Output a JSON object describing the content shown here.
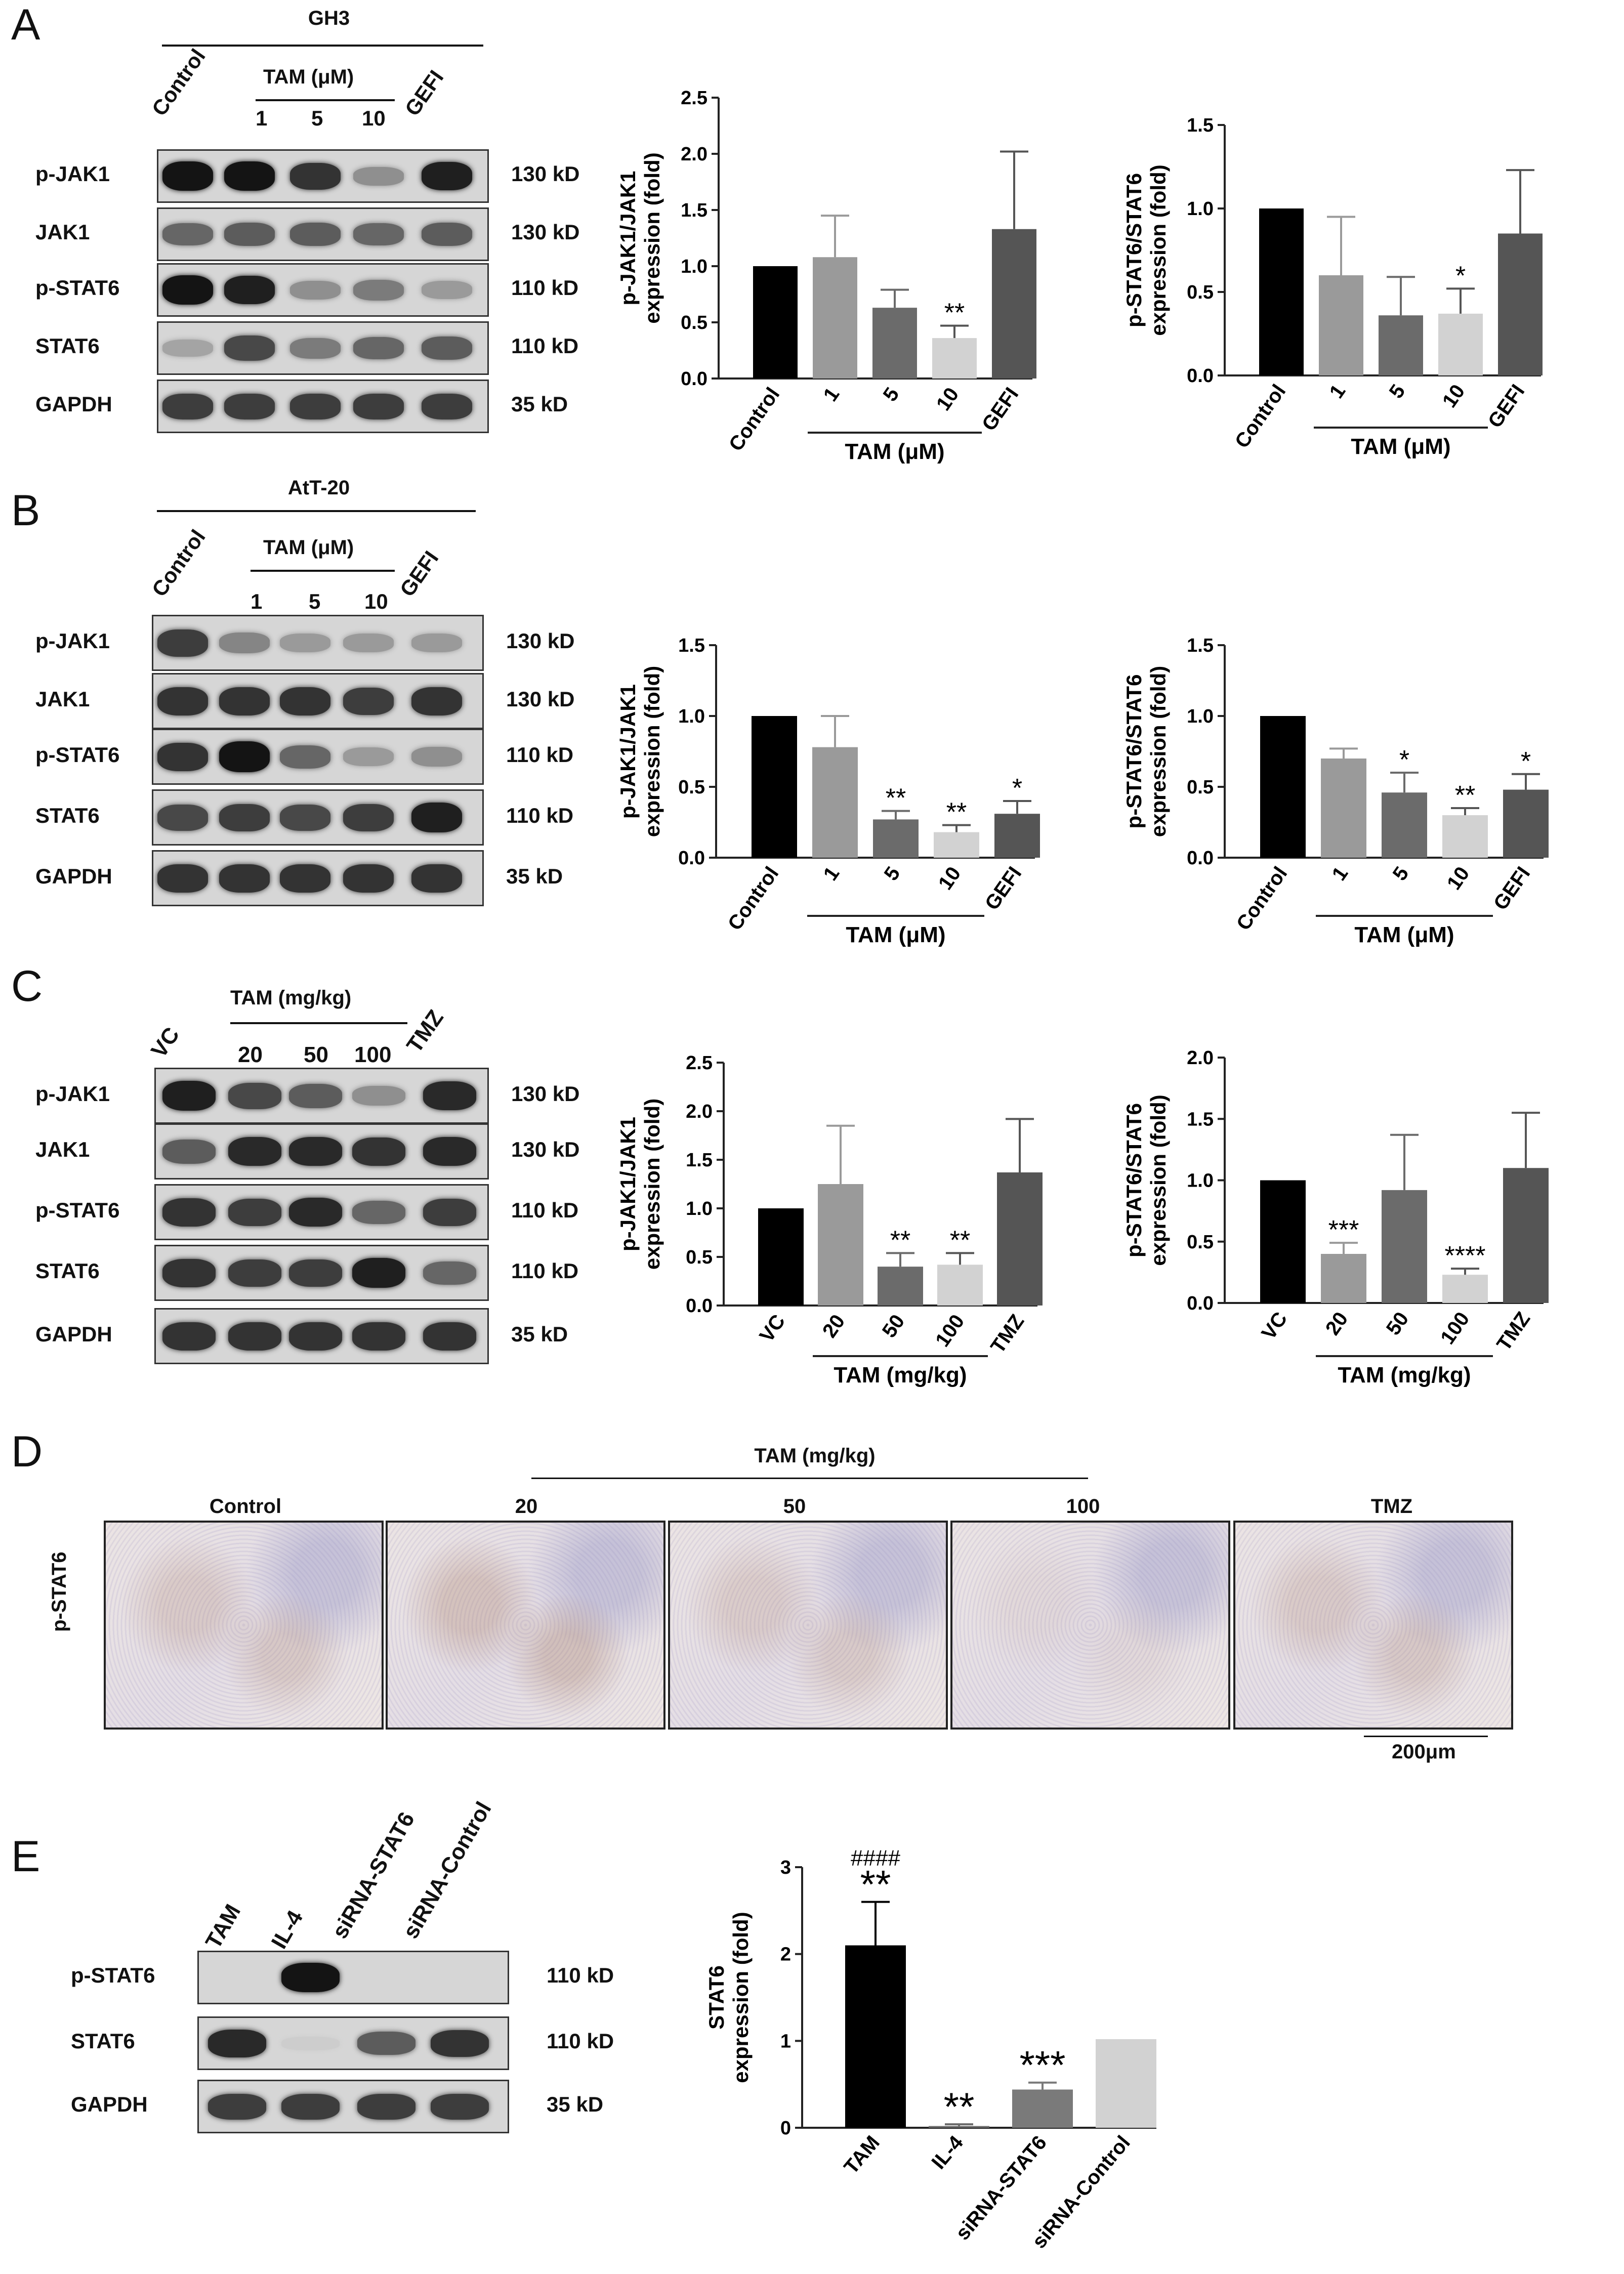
{
  "panels": {
    "A": {
      "letter": "A",
      "cell_line": "GH3",
      "treatment_header": "TAM (μM)",
      "lanes": [
        "Control",
        "1",
        "5",
        "10",
        "GEFI"
      ],
      "rows": [
        {
          "label": "p-JAK1",
          "kd": "130 kD",
          "intensity": [
            0.95,
            0.95,
            0.8,
            0.35,
            0.9
          ]
        },
        {
          "label": "JAK1",
          "kd": "130 kD",
          "intensity": [
            0.55,
            0.6,
            0.6,
            0.55,
            0.6
          ]
        },
        {
          "label": "p-STAT6",
          "kd": "110 kD",
          "intensity": [
            0.95,
            0.9,
            0.35,
            0.45,
            0.3
          ]
        },
        {
          "label": "STAT6",
          "kd": "110 kD",
          "intensity": [
            0.25,
            0.7,
            0.45,
            0.55,
            0.6
          ]
        },
        {
          "label": "GAPDH",
          "kd": "35 kD",
          "intensity": [
            0.75,
            0.75,
            0.75,
            0.75,
            0.75
          ]
        }
      ]
    },
    "B": {
      "letter": "B",
      "cell_line": "AtT-20",
      "treatment_header": "TAM (μM)",
      "lanes": [
        "Control",
        "1",
        "5",
        "10",
        "GEFI"
      ],
      "rows": [
        {
          "label": "p-JAK1",
          "kd": "130 kD",
          "intensity": [
            0.75,
            0.4,
            0.3,
            0.3,
            0.3
          ]
        },
        {
          "label": "JAK1",
          "kd": "130 kD",
          "intensity": [
            0.8,
            0.8,
            0.8,
            0.75,
            0.8
          ]
        },
        {
          "label": "p-STAT6",
          "kd": "110 kD",
          "intensity": [
            0.8,
            0.95,
            0.55,
            0.3,
            0.35
          ]
        },
        {
          "label": "STAT6",
          "kd": "110 kD",
          "intensity": [
            0.7,
            0.75,
            0.7,
            0.75,
            0.9
          ]
        },
        {
          "label": "GAPDH",
          "kd": "35 kD",
          "intensity": [
            0.8,
            0.8,
            0.8,
            0.8,
            0.8
          ]
        }
      ]
    },
    "C": {
      "letter": "C",
      "treatment_header": "TAM (mg/kg)",
      "lanes": [
        "VC",
        "20",
        "50",
        "100",
        "TMZ"
      ],
      "rows": [
        {
          "label": "p-JAK1",
          "kd": "130 kD",
          "intensity": [
            0.9,
            0.7,
            0.6,
            0.35,
            0.85
          ]
        },
        {
          "label": "JAK1",
          "kd": "130 kD",
          "intensity": [
            0.6,
            0.85,
            0.85,
            0.8,
            0.85
          ]
        },
        {
          "label": "p-STAT6",
          "kd": "110 kD",
          "intensity": [
            0.8,
            0.75,
            0.85,
            0.55,
            0.75
          ]
        },
        {
          "label": "STAT6",
          "kd": "110 kD",
          "intensity": [
            0.8,
            0.75,
            0.75,
            0.9,
            0.55
          ]
        },
        {
          "label": "GAPDH",
          "kd": "35 kD",
          "intensity": [
            0.8,
            0.8,
            0.8,
            0.8,
            0.8
          ]
        }
      ]
    },
    "D": {
      "letter": "D",
      "treatment_header": "TAM (mg/kg)",
      "row_label": "p-STAT6",
      "columns": [
        "Control",
        "20",
        "50",
        "100",
        "TMZ"
      ],
      "stain_level": [
        0.55,
        0.75,
        0.5,
        0.2,
        0.55
      ],
      "scale_bar": "200μm"
    },
    "E": {
      "letter": "E",
      "lanes": [
        "TAM",
        "IL-4",
        "siRNA-STAT6",
        "siRNA-Control"
      ],
      "rows": [
        {
          "label": "p-STAT6",
          "kd": "110 kD",
          "intensity": [
            0,
            0.95,
            0,
            0
          ]
        },
        {
          "label": "STAT6",
          "kd": "110 kD",
          "intensity": [
            0.85,
            0.05,
            0.6,
            0.8
          ]
        },
        {
          "label": "GAPDH",
          "kd": "35 kD",
          "intensity": [
            0.75,
            0.75,
            0.75,
            0.75
          ]
        }
      ]
    }
  },
  "chart_data": [
    {
      "id": "A1",
      "type": "bar",
      "categories": [
        "Control",
        "1",
        "5",
        "10",
        "GEFI"
      ],
      "values": [
        1.0,
        1.08,
        0.63,
        0.36,
        1.33
      ],
      "errors": [
        0,
        0.37,
        0.16,
        0.11,
        0.69
      ],
      "significance": [
        "",
        "",
        "",
        "**",
        ""
      ],
      "ylabel": "p-JAK1/JAK1\nexpression (fold)",
      "ylim": [
        0,
        2.5
      ],
      "yticks": [
        "0.0",
        "0.5",
        "1.0",
        "1.5",
        "2.0",
        "2.5"
      ],
      "group_label": "TAM (μM)",
      "colors": [
        "#000000",
        "#9a9a9a",
        "#6b6b6b",
        "#d2d2d2",
        "#555555"
      ]
    },
    {
      "id": "A2",
      "type": "bar",
      "categories": [
        "Control",
        "1",
        "5",
        "10",
        "GEFI"
      ],
      "values": [
        1.0,
        0.6,
        0.36,
        0.37,
        0.85
      ],
      "errors": [
        0,
        0.35,
        0.23,
        0.15,
        0.38
      ],
      "significance": [
        "",
        "",
        "",
        "*",
        ""
      ],
      "ylabel": "p-STAT6/STAT6\nexpression (fold)",
      "ylim": [
        0,
        1.5
      ],
      "yticks": [
        "0.0",
        "0.5",
        "1.0",
        "1.5"
      ],
      "group_label": "TAM (μM)",
      "colors": [
        "#000000",
        "#9a9a9a",
        "#6b6b6b",
        "#d2d2d2",
        "#555555"
      ]
    },
    {
      "id": "B1",
      "type": "bar",
      "categories": [
        "Control",
        "1",
        "5",
        "10",
        "GEFI"
      ],
      "values": [
        1.0,
        0.78,
        0.27,
        0.18,
        0.31
      ],
      "errors": [
        0,
        0.22,
        0.06,
        0.05,
        0.09
      ],
      "significance": [
        "",
        "",
        "**",
        "**",
        "*"
      ],
      "ylabel": "p-JAK1/JAK1\nexpression (fold)",
      "ylim": [
        0,
        1.5
      ],
      "yticks": [
        "0.0",
        "0.5",
        "1.0",
        "1.5"
      ],
      "group_label": "TAM (μM)",
      "colors": [
        "#000000",
        "#9a9a9a",
        "#6b6b6b",
        "#d2d2d2",
        "#555555"
      ]
    },
    {
      "id": "B2",
      "type": "bar",
      "categories": [
        "Control",
        "1",
        "5",
        "10",
        "GEFI"
      ],
      "values": [
        1.0,
        0.7,
        0.46,
        0.3,
        0.48
      ],
      "errors": [
        0,
        0.07,
        0.14,
        0.05,
        0.11
      ],
      "significance": [
        "",
        "",
        "*",
        "**",
        "*"
      ],
      "ylabel": "p-STAT6/STAT6\nexpression (fold)",
      "ylim": [
        0,
        1.5
      ],
      "yticks": [
        "0.0",
        "0.5",
        "1.0",
        "1.5"
      ],
      "group_label": "TAM (μM)",
      "colors": [
        "#000000",
        "#9a9a9a",
        "#6b6b6b",
        "#d2d2d2",
        "#555555"
      ]
    },
    {
      "id": "C1",
      "type": "bar",
      "categories": [
        "VC",
        "20",
        "50",
        "100",
        "TMZ"
      ],
      "values": [
        1.0,
        1.25,
        0.4,
        0.42,
        1.37
      ],
      "errors": [
        0,
        0.6,
        0.14,
        0.12,
        0.55
      ],
      "significance": [
        "",
        "",
        "**",
        "**",
        ""
      ],
      "ylabel": "p-JAK1/JAK1\nexpression (fold)",
      "ylim": [
        0,
        2.5
      ],
      "yticks": [
        "0.0",
        "0.5",
        "1.0",
        "1.5",
        "2.0",
        "2.5"
      ],
      "group_label": "TAM (mg/kg)",
      "colors": [
        "#000000",
        "#9a9a9a",
        "#6b6b6b",
        "#d2d2d2",
        "#555555"
      ]
    },
    {
      "id": "C2",
      "type": "bar",
      "categories": [
        "VC",
        "20",
        "50",
        "100",
        "TMZ"
      ],
      "values": [
        1.0,
        0.4,
        0.92,
        0.23,
        1.1
      ],
      "errors": [
        0,
        0.09,
        0.45,
        0.05,
        0.45
      ],
      "significance": [
        "",
        "***",
        "",
        "****",
        ""
      ],
      "ylabel": "p-STAT6/STAT6\nexpression (fold)",
      "ylim": [
        0,
        2.0
      ],
      "yticks": [
        "0.0",
        "0.5",
        "1.0",
        "1.5",
        "2.0"
      ],
      "group_label": "TAM (mg/kg)",
      "colors": [
        "#000000",
        "#9a9a9a",
        "#6b6b6b",
        "#d2d2d2",
        "#555555"
      ]
    },
    {
      "id": "E1",
      "type": "bar",
      "categories": [
        "TAM",
        "IL-4",
        "siRNA-STAT6",
        "siRNA-Control"
      ],
      "values": [
        2.1,
        0.02,
        0.44,
        1.02
      ],
      "errors": [
        0.5,
        0.02,
        0.08,
        0
      ],
      "significance": [
        "**",
        "**",
        "***",
        ""
      ],
      "extra_marks": [
        "####",
        "",
        "",
        ""
      ],
      "ylabel": "STAT6\nexpression (fold)",
      "ylim": [
        0,
        3
      ],
      "yticks": [
        "0",
        "1",
        "2",
        "3"
      ],
      "group_label": "",
      "colors": [
        "#000000",
        "#6b6b6b",
        "#7a7a7a",
        "#d2d2d2"
      ]
    }
  ]
}
